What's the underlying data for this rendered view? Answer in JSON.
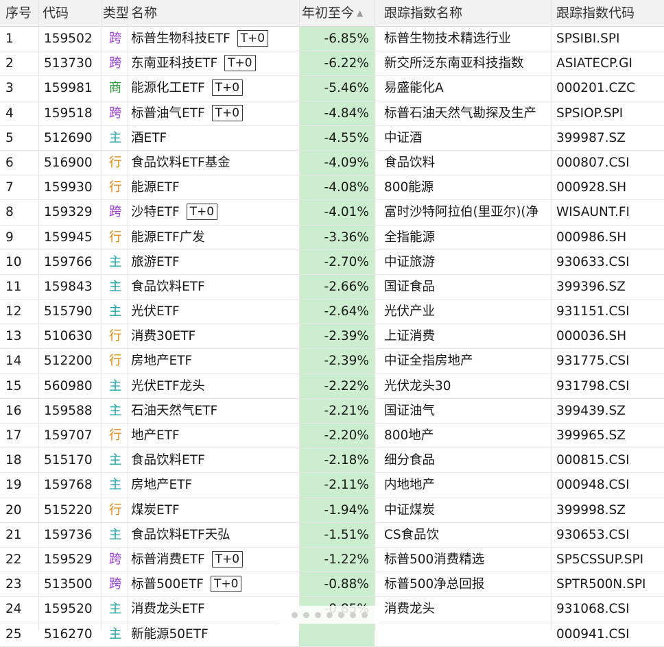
{
  "header": {
    "no": "序号",
    "code": "代码",
    "type": "类型",
    "name": "名称",
    "ytd": "年初至今",
    "index_name": "跟踪指数名称",
    "index_code": "跟踪指数代码",
    "sort_icon": "sort-descending-triangle"
  },
  "type_colors": {
    "跨": "#9b3fd1",
    "商": "#2e9a3c",
    "主": "#1fa3a3",
    "行": "#e08a12"
  },
  "rows": [
    {
      "no": "1",
      "code": "159502",
      "type": "跨",
      "name": "标普生物科技ETF",
      "tplus": "T+0",
      "ytd": "-6.85%",
      "index_name": "标普生物技术精选行业",
      "index_code": "SPSIBI.SPI"
    },
    {
      "no": "2",
      "code": "513730",
      "type": "跨",
      "name": "东南亚科技ETF",
      "tplus": "T+0",
      "ytd": "-6.22%",
      "index_name": "新交所泛东南亚科技指数",
      "index_code": "ASIATECP.GI"
    },
    {
      "no": "3",
      "code": "159981",
      "type": "商",
      "name": "能源化工ETF",
      "tplus": "T+0",
      "ytd": "-5.46%",
      "index_name": "易盛能化A",
      "index_code": "000201.CZC"
    },
    {
      "no": "4",
      "code": "159518",
      "type": "跨",
      "name": "标普油气ETF",
      "tplus": "T+0",
      "ytd": "-4.84%",
      "index_name": "标普石油天然气勘探及生产",
      "index_code": "SPSIOP.SPI"
    },
    {
      "no": "5",
      "code": "512690",
      "type": "主",
      "name": "酒ETF",
      "tplus": "",
      "ytd": "-4.55%",
      "index_name": "中证酒",
      "index_code": "399987.SZ"
    },
    {
      "no": "6",
      "code": "516900",
      "type": "行",
      "name": "食品饮料ETF基金",
      "tplus": "",
      "ytd": "-4.09%",
      "index_name": "食品饮料",
      "index_code": "000807.CSI"
    },
    {
      "no": "7",
      "code": "159930",
      "type": "行",
      "name": "能源ETF",
      "tplus": "",
      "ytd": "-4.08%",
      "index_name": "800能源",
      "index_code": "000928.SH"
    },
    {
      "no": "8",
      "code": "159329",
      "type": "跨",
      "name": "沙特ETF",
      "tplus": "T+0",
      "ytd": "-4.01%",
      "index_name": "富时沙特阿拉伯(里亚尔)(净",
      "index_code": "WISAUNT.FI"
    },
    {
      "no": "9",
      "code": "159945",
      "type": "行",
      "name": "能源ETF广发",
      "tplus": "",
      "ytd": "-3.36%",
      "index_name": "全指能源",
      "index_code": "000986.SH"
    },
    {
      "no": "10",
      "code": "159766",
      "type": "主",
      "name": "旅游ETF",
      "tplus": "",
      "ytd": "-2.70%",
      "index_name": "中证旅游",
      "index_code": "930633.CSI"
    },
    {
      "no": "11",
      "code": "159843",
      "type": "主",
      "name": "食品饮料ETF",
      "tplus": "",
      "ytd": "-2.66%",
      "index_name": "国证食品",
      "index_code": "399396.SZ"
    },
    {
      "no": "12",
      "code": "515790",
      "type": "主",
      "name": "光伏ETF",
      "tplus": "",
      "ytd": "-2.64%",
      "index_name": "光伏产业",
      "index_code": "931151.CSI"
    },
    {
      "no": "13",
      "code": "510630",
      "type": "行",
      "name": "消费30ETF",
      "tplus": "",
      "ytd": "-2.39%",
      "index_name": "上证消费",
      "index_code": "000036.SH"
    },
    {
      "no": "14",
      "code": "512200",
      "type": "行",
      "name": "房地产ETF",
      "tplus": "",
      "ytd": "-2.39%",
      "index_name": "中证全指房地产",
      "index_code": "931775.CSI"
    },
    {
      "no": "15",
      "code": "560980",
      "type": "主",
      "name": "光伏ETF龙头",
      "tplus": "",
      "ytd": "-2.22%",
      "index_name": "光伏龙头30",
      "index_code": "931798.CSI"
    },
    {
      "no": "16",
      "code": "159588",
      "type": "主",
      "name": "石油天然气ETF",
      "tplus": "",
      "ytd": "-2.21%",
      "index_name": "国证油气",
      "index_code": "399439.SZ"
    },
    {
      "no": "17",
      "code": "159707",
      "type": "行",
      "name": "地产ETF",
      "tplus": "",
      "ytd": "-2.20%",
      "index_name": "800地产",
      "index_code": "399965.SZ"
    },
    {
      "no": "18",
      "code": "515170",
      "type": "主",
      "name": "食品饮料ETF",
      "tplus": "",
      "ytd": "-2.18%",
      "index_name": "细分食品",
      "index_code": "000815.CSI"
    },
    {
      "no": "19",
      "code": "159768",
      "type": "主",
      "name": "房地产ETF",
      "tplus": "",
      "ytd": "-2.11%",
      "index_name": "内地地产",
      "index_code": "000948.CSI"
    },
    {
      "no": "20",
      "code": "515220",
      "type": "行",
      "name": "煤炭ETF",
      "tplus": "",
      "ytd": "-1.94%",
      "index_name": "中证煤炭",
      "index_code": "399998.SZ"
    },
    {
      "no": "21",
      "code": "159736",
      "type": "主",
      "name": "食品饮料ETF天弘",
      "tplus": "",
      "ytd": "-1.51%",
      "index_name": "CS食品饮",
      "index_code": "930653.CSI"
    },
    {
      "no": "22",
      "code": "159529",
      "type": "跨",
      "name": "标普消费ETF",
      "tplus": "T+0",
      "ytd": "-1.22%",
      "index_name": "标普500消费精选",
      "index_code": "SP5CSSUP.SPI"
    },
    {
      "no": "23",
      "code": "513500",
      "type": "跨",
      "name": "标普500ETF",
      "tplus": "T+0",
      "ytd": "-0.88%",
      "index_name": "标普500净总回报",
      "index_code": "SPTR500N.SPI"
    },
    {
      "no": "24",
      "code": "159520",
      "type": "主",
      "name": "消费龙头ETF",
      "tplus": "",
      "ytd": "-0.85%",
      "index_name": "消费龙头",
      "index_code": "931068.CSI"
    },
    {
      "no": "25",
      "code": "516270",
      "type": "主",
      "name": "新能源50ETF",
      "tplus": "",
      "ytd": "",
      "index_name": "",
      "index_code": "000941.CSI"
    }
  ]
}
